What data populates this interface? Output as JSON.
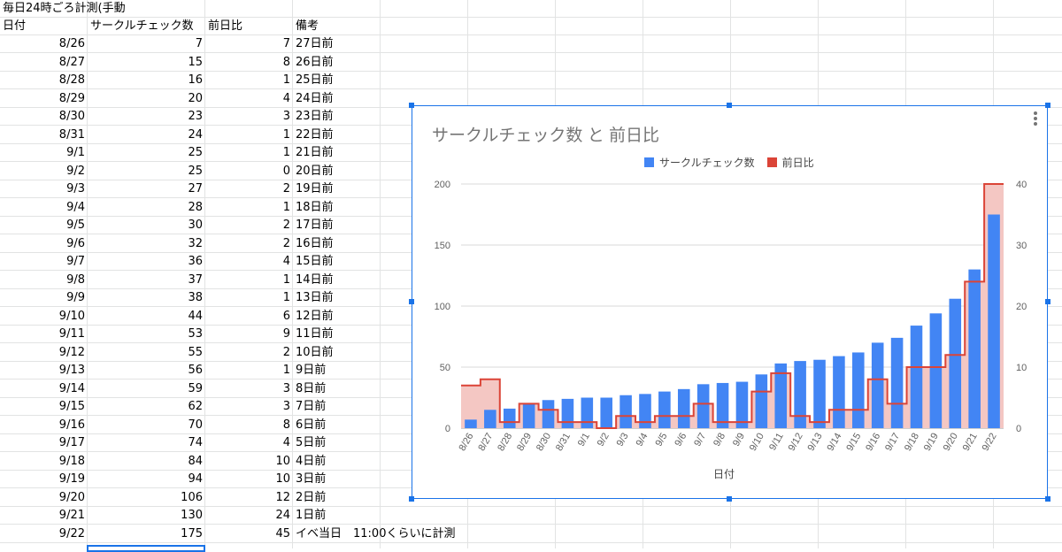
{
  "sheet": {
    "title_cell": "毎日24時ごろ計測(手動",
    "headers": [
      "日付",
      "サークルチェック数",
      "前日比",
      "備考"
    ],
    "rows": [
      [
        "8/26",
        "7",
        "7",
        "27日前"
      ],
      [
        "8/27",
        "15",
        "8",
        "26日前"
      ],
      [
        "8/28",
        "16",
        "1",
        "25日前"
      ],
      [
        "8/29",
        "20",
        "4",
        "24日前"
      ],
      [
        "8/30",
        "23",
        "3",
        "23日前"
      ],
      [
        "8/31",
        "24",
        "1",
        "22日前"
      ],
      [
        "9/1",
        "25",
        "1",
        "21日前"
      ],
      [
        "9/2",
        "25",
        "0",
        "20日前"
      ],
      [
        "9/3",
        "27",
        "2",
        "19日前"
      ],
      [
        "9/4",
        "28",
        "1",
        "18日前"
      ],
      [
        "9/5",
        "30",
        "2",
        "17日前"
      ],
      [
        "9/6",
        "32",
        "2",
        "16日前"
      ],
      [
        "9/7",
        "36",
        "4",
        "15日前"
      ],
      [
        "9/8",
        "37",
        "1",
        "14日前"
      ],
      [
        "9/9",
        "38",
        "1",
        "13日前"
      ],
      [
        "9/10",
        "44",
        "6",
        "12日前"
      ],
      [
        "9/11",
        "53",
        "9",
        "11日前"
      ],
      [
        "9/12",
        "55",
        "2",
        "10日前"
      ],
      [
        "9/13",
        "56",
        "1",
        "9日前"
      ],
      [
        "9/14",
        "59",
        "3",
        "8日前"
      ],
      [
        "9/15",
        "62",
        "3",
        "7日前"
      ],
      [
        "9/16",
        "70",
        "8",
        "6日前"
      ],
      [
        "9/17",
        "74",
        "4",
        "5日前"
      ],
      [
        "9/18",
        "84",
        "10",
        "4日前"
      ],
      [
        "9/19",
        "94",
        "10",
        "3日前"
      ],
      [
        "9/20",
        "106",
        "12",
        "2日前"
      ],
      [
        "9/21",
        "130",
        "24",
        "1日前"
      ],
      [
        "9/22",
        "175",
        "45",
        "イベ当日　11:00くらいに計測"
      ]
    ]
  },
  "chart_data": {
    "type": "bar",
    "title": "サークルチェック数 と 前日比",
    "xlabel": "日付",
    "ylabel": "",
    "legend_position": "top",
    "categories": [
      "8/26",
      "8/27",
      "8/28",
      "8/29",
      "8/30",
      "8/31",
      "9/1",
      "9/2",
      "9/3",
      "9/4",
      "9/5",
      "9/6",
      "9/7",
      "9/8",
      "9/9",
      "9/10",
      "9/11",
      "9/12",
      "9/13",
      "9/14",
      "9/15",
      "9/16",
      "9/17",
      "9/18",
      "9/19",
      "9/20",
      "9/21",
      "9/22"
    ],
    "series": [
      {
        "name": "サークルチェック数",
        "kind": "bar",
        "axis": "left",
        "color": "#4285f4",
        "values": [
          7,
          15,
          16,
          20,
          23,
          24,
          25,
          25,
          27,
          28,
          30,
          32,
          36,
          37,
          38,
          44,
          53,
          55,
          56,
          59,
          62,
          70,
          74,
          84,
          94,
          106,
          130,
          175
        ]
      },
      {
        "name": "前日比",
        "kind": "stepped-area",
        "axis": "right",
        "color": "#db4437",
        "fill": "#f4c7c3",
        "values": [
          7,
          8,
          1,
          4,
          3,
          1,
          1,
          0,
          2,
          1,
          2,
          2,
          4,
          1,
          1,
          6,
          9,
          2,
          1,
          3,
          3,
          8,
          4,
          10,
          10,
          12,
          24,
          45
        ]
      }
    ],
    "ylim_left": [
      0,
      200
    ],
    "ylim_right": [
      0,
      40
    ],
    "yticks_left": [
      "0",
      "50",
      "100",
      "150",
      "200"
    ],
    "yticks_right": [
      "0",
      "10",
      "20",
      "30",
      "40"
    ],
    "grid": true
  }
}
